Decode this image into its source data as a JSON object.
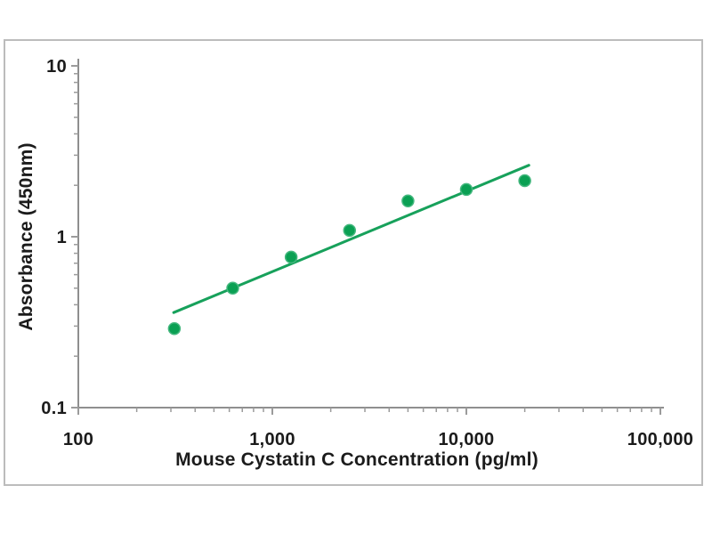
{
  "figure": {
    "background": "#ffffff",
    "frame_border_color": "#bcbcbc"
  },
  "chart_data": {
    "type": "scatter",
    "title": "",
    "xlabel": "Mouse Cystatin C Concentration (pg/ml)",
    "ylabel": "Absorbance (450nm)",
    "x_scale": "log",
    "y_scale": "log",
    "xlim": [
      100,
      100000
    ],
    "ylim": [
      0.1,
      10
    ],
    "grid": false,
    "legend": "none",
    "axis_color": "#8f8f8f",
    "tick_color": "#9b9b9b",
    "text_color": "#1b1b1b",
    "x_ticks": [
      {
        "value": 100,
        "label": "100"
      },
      {
        "value": 1000,
        "label": "1,000"
      },
      {
        "value": 10000,
        "label": "10,000"
      },
      {
        "value": 100000,
        "label": "100,000"
      }
    ],
    "y_ticks": [
      {
        "value": 0.1,
        "label": "0.1"
      },
      {
        "value": 1,
        "label": "1"
      },
      {
        "value": 10,
        "label": "10"
      }
    ],
    "minor_ticks_per_decade": [
      2,
      3,
      4,
      5,
      6,
      7,
      8,
      9
    ],
    "series": [
      {
        "name": "trend-line",
        "type": "line",
        "color": "#17a15b",
        "points": [
          {
            "x": 310,
            "y": 0.36
          },
          {
            "x": 21000,
            "y": 2.62
          }
        ]
      },
      {
        "name": "standard-points",
        "type": "scatter",
        "marker": "circle",
        "color": "#0aa053",
        "marker_edge_color": "#44b77e",
        "points": [
          {
            "x": 312.5,
            "y": 0.29
          },
          {
            "x": 625,
            "y": 0.5
          },
          {
            "x": 1250,
            "y": 0.76
          },
          {
            "x": 2500,
            "y": 1.09
          },
          {
            "x": 5000,
            "y": 1.62
          },
          {
            "x": 10000,
            "y": 1.89
          },
          {
            "x": 20000,
            "y": 2.13
          }
        ]
      }
    ]
  }
}
